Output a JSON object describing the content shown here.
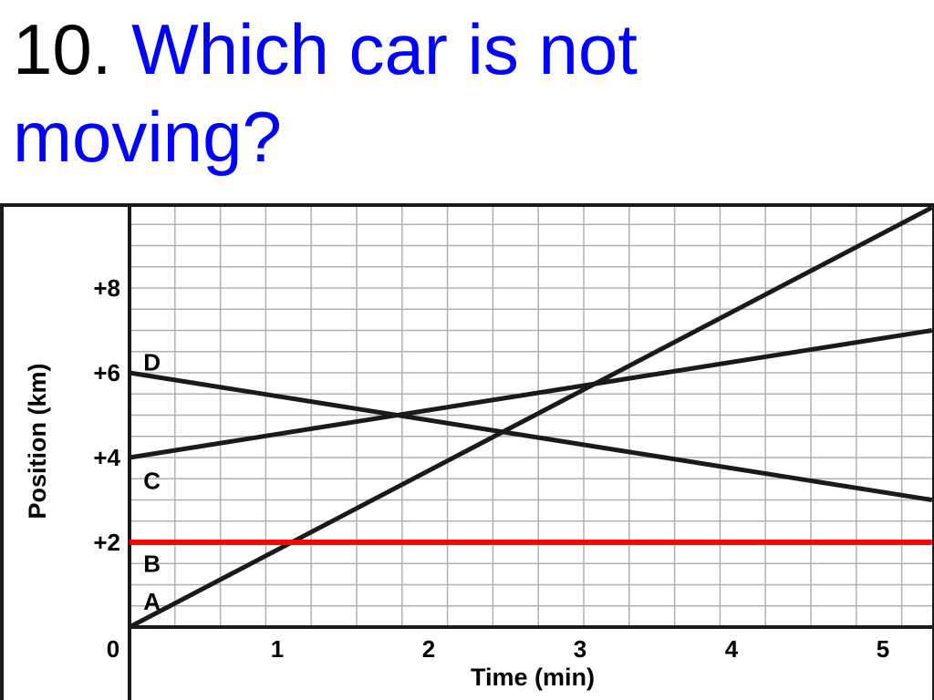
{
  "question": {
    "number": "10.",
    "text": "Which car is not moving?"
  },
  "chart_data": {
    "type": "line",
    "title": "",
    "xlabel": "Time (min)",
    "ylabel": "Position (km)",
    "x_ticks": [
      "0",
      "1",
      "2",
      "3",
      "4",
      "5"
    ],
    "y_ticks": [
      "+2",
      "+4",
      "+6",
      "+8"
    ],
    "xlim": [
      0,
      5.3
    ],
    "ylim": [
      -0.3,
      10
    ],
    "grid": true,
    "series": [
      {
        "name": "A",
        "color": "#1a1a1a",
        "x": [
          0,
          5.3
        ],
        "y": [
          0,
          9.9
        ]
      },
      {
        "name": "B",
        "color": "#ff0000",
        "x": [
          0,
          5.3
        ],
        "y": [
          2,
          2
        ]
      },
      {
        "name": "C",
        "color": "#1a1a1a",
        "x": [
          0,
          5.3
        ],
        "y": [
          4,
          7
        ]
      },
      {
        "name": "D",
        "color": "#1a1a1a",
        "x": [
          0,
          5.3
        ],
        "y": [
          6,
          3
        ]
      }
    ]
  }
}
